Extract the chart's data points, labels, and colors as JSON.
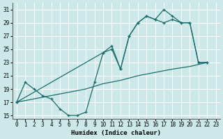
{
  "xlabel": "Humidex (Indice chaleur)",
  "bg_color": "#cce8e8",
  "grid_color": "#ffffff",
  "line_color": "#1a6b6b",
  "xlim": [
    -0.5,
    23.5
  ],
  "ylim": [
    14.5,
    32
  ],
  "xticks": [
    0,
    1,
    2,
    3,
    4,
    5,
    6,
    7,
    8,
    9,
    10,
    11,
    12,
    13,
    14,
    15,
    16,
    17,
    18,
    19,
    20,
    21,
    22,
    23
  ],
  "yticks": [
    15,
    17,
    19,
    21,
    23,
    25,
    27,
    29,
    31
  ],
  "line_zigzag_x": [
    0,
    1,
    2,
    3,
    4,
    5,
    6,
    7,
    8,
    9,
    10,
    11,
    12,
    13,
    14,
    15,
    16,
    17,
    18,
    19,
    20,
    21,
    22
  ],
  "line_zigzag_y": [
    17,
    20,
    19,
    18,
    17.5,
    16,
    15,
    15,
    15.5,
    20,
    24.5,
    25,
    22,
    27,
    29,
    30,
    29.5,
    31,
    30,
    29,
    29,
    23,
    23
  ],
  "line_straight_x": [
    0,
    2,
    4,
    6,
    8,
    10,
    12,
    14,
    16,
    18,
    19,
    20,
    21,
    22
  ],
  "line_straight_y": [
    17,
    17.5,
    18,
    18.5,
    19,
    19.8,
    20.3,
    21,
    21.5,
    22,
    22.2,
    22.4,
    22.7,
    23
  ],
  "line_upper_x": [
    0,
    10,
    11,
    12,
    13,
    14,
    15,
    16,
    17,
    18,
    19,
    20,
    21,
    22
  ],
  "line_upper_y": [
    17,
    24.5,
    25.5,
    22,
    27,
    29,
    30,
    29.5,
    29,
    29.5,
    29,
    29,
    23,
    23
  ]
}
